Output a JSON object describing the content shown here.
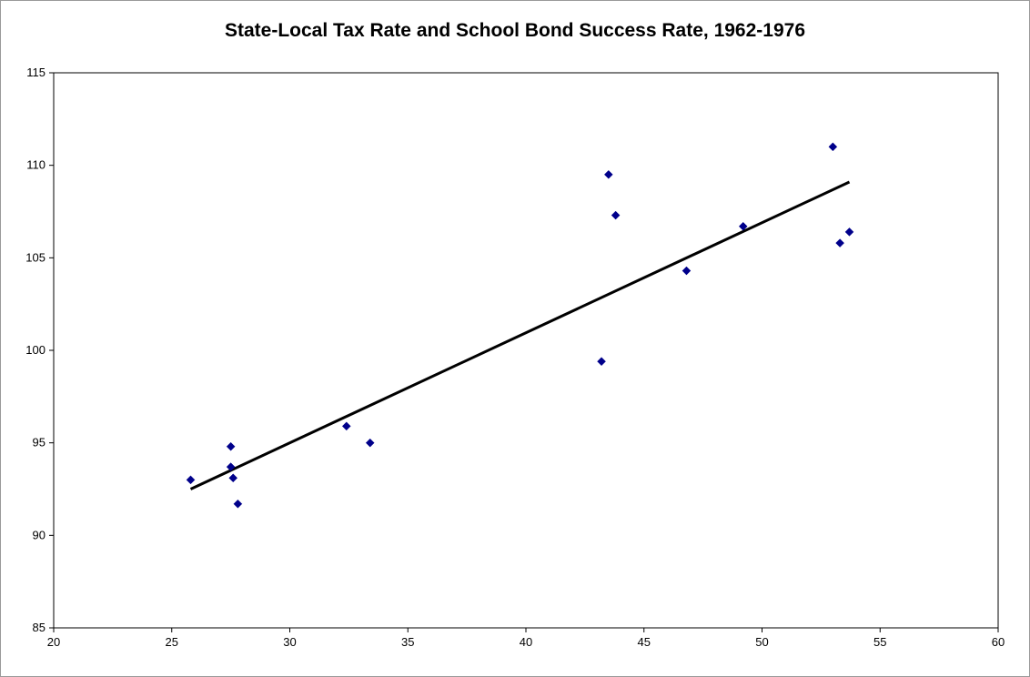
{
  "chart_data": {
    "type": "scatter",
    "title": "State-Local Tax Rate and School Bond Success Rate, 1962-1976",
    "xlabel": "",
    "ylabel": "",
    "xlim": [
      20,
      60
    ],
    "ylim": [
      85,
      115
    ],
    "xticks": [
      20,
      25,
      30,
      35,
      40,
      45,
      50,
      55,
      60
    ],
    "yticks": [
      85,
      90,
      95,
      100,
      105,
      110,
      115
    ],
    "grid": false,
    "legend": "none",
    "series": [
      {
        "marker": "diamond",
        "color": "#00008B",
        "points": [
          {
            "x": 25.8,
            "y": 93.0
          },
          {
            "x": 27.5,
            "y": 94.8
          },
          {
            "x": 27.5,
            "y": 93.7
          },
          {
            "x": 27.6,
            "y": 93.1
          },
          {
            "x": 27.8,
            "y": 91.7
          },
          {
            "x": 32.4,
            "y": 95.9
          },
          {
            "x": 33.4,
            "y": 95.0
          },
          {
            "x": 43.2,
            "y": 99.4
          },
          {
            "x": 43.5,
            "y": 109.5
          },
          {
            "x": 43.8,
            "y": 107.3
          },
          {
            "x": 46.8,
            "y": 104.3
          },
          {
            "x": 49.2,
            "y": 106.7
          },
          {
            "x": 53.0,
            "y": 111.0
          },
          {
            "x": 53.3,
            "y": 105.8
          },
          {
            "x": 53.7,
            "y": 106.4
          }
        ]
      }
    ],
    "trendline": {
      "color": "#000000",
      "x": [
        25.8,
        53.7
      ],
      "y": [
        92.5,
        109.1
      ]
    }
  }
}
